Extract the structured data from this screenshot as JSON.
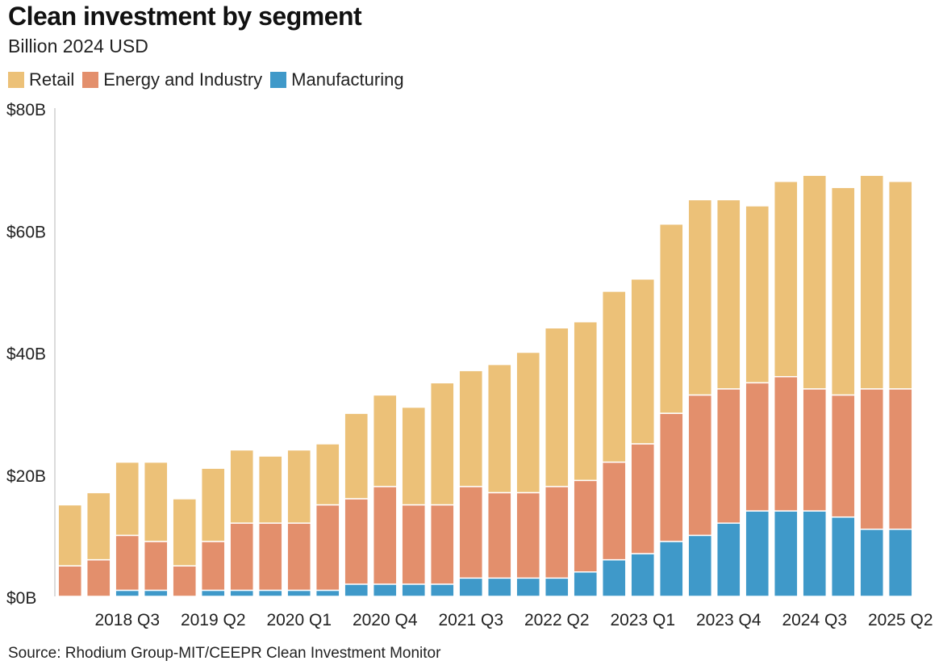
{
  "title": "Clean investment by segment",
  "subtitle": "Billion 2024 USD",
  "source": "Source: Rhodium Group-MIT/CEEPR Clean Investment Monitor",
  "colors": {
    "retail": "#ecc178",
    "energy": "#e38f6c",
    "manufacturing": "#3f99c9"
  },
  "legend": [
    {
      "label": "Retail",
      "color": "#ecc178"
    },
    {
      "label": "Energy and Industry",
      "color": "#e38f6c"
    },
    {
      "label": "Manufacturing",
      "color": "#3f99c9"
    }
  ],
  "chart_data": {
    "type": "bar",
    "stacked": true,
    "ylim": [
      0,
      80
    ],
    "yticks": [
      "$0B",
      "$20B",
      "$40B",
      "$60B",
      "$80B"
    ],
    "ytick_values": [
      0,
      20,
      40,
      60,
      80
    ],
    "xtick_labels": [
      {
        "label": "2018 Q3",
        "index": 2
      },
      {
        "label": "2019 Q2",
        "index": 5
      },
      {
        "label": "2020 Q1",
        "index": 8
      },
      {
        "label": "2020 Q4",
        "index": 11
      },
      {
        "label": "2021 Q3",
        "index": 14
      },
      {
        "label": "2022 Q2",
        "index": 17
      },
      {
        "label": "2023 Q1",
        "index": 20
      },
      {
        "label": "2023 Q4",
        "index": 23
      },
      {
        "label": "2024 Q3",
        "index": 26
      },
      {
        "label": "2025 Q2",
        "index": 29
      }
    ],
    "categories": [
      "2018 Q1",
      "2018 Q2",
      "2018 Q3",
      "2018 Q4",
      "2019 Q1",
      "2019 Q2",
      "2019 Q3",
      "2019 Q4",
      "2020 Q1",
      "2020 Q2",
      "2020 Q3",
      "2020 Q4",
      "2021 Q1",
      "2021 Q2",
      "2021 Q3",
      "2021 Q4",
      "2022 Q1",
      "2022 Q2",
      "2022 Q3",
      "2022 Q4",
      "2023 Q1",
      "2023 Q2",
      "2023 Q3",
      "2023 Q4",
      "2024 Q1",
      "2024 Q2",
      "2024 Q3",
      "2024 Q4",
      "2025 Q1",
      "2025 Q2"
    ],
    "series": [
      {
        "name": "Manufacturing",
        "values": [
          0,
          0,
          1,
          1,
          0,
          1,
          1,
          1,
          1,
          1,
          2,
          2,
          2,
          2,
          3,
          3,
          3,
          3,
          4,
          6,
          7,
          9,
          10,
          12,
          14,
          14,
          14,
          13,
          11,
          11
        ]
      },
      {
        "name": "Energy and Industry",
        "values": [
          5,
          6,
          9,
          8,
          5,
          8,
          11,
          11,
          11,
          14,
          14,
          16,
          13,
          13,
          15,
          14,
          14,
          15,
          15,
          16,
          18,
          21,
          23,
          22,
          21,
          22,
          20,
          20,
          23,
          23
        ]
      },
      {
        "name": "Retail",
        "values": [
          10,
          11,
          12,
          13,
          11,
          12,
          12,
          11,
          12,
          10,
          14,
          15,
          16,
          20,
          19,
          21,
          23,
          26,
          26,
          28,
          27,
          31,
          32,
          31,
          29,
          32,
          35,
          34,
          35,
          34
        ]
      }
    ]
  }
}
